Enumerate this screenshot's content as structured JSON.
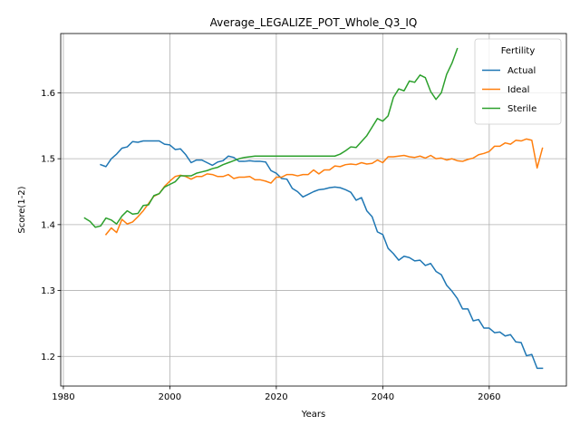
{
  "chart_data": {
    "type": "line",
    "title": "Average_LEGALIZE_POT_Whole_Q3_IQ",
    "xlabel": "Years",
    "ylabel": "Score(1-2)",
    "xlim": [
      1979.5,
      2074.5
    ],
    "ylim": [
      1.155,
      1.69
    ],
    "xticks": [
      1980,
      2000,
      2020,
      2040,
      2060
    ],
    "yticks": [
      1.2,
      1.3,
      1.4,
      1.5,
      1.6
    ],
    "grid": true,
    "legend": {
      "title": "Fertility",
      "placement": "top-right"
    },
    "series": [
      {
        "name": "Actual",
        "color": "#1f77b4",
        "x": [
          1987,
          1988,
          1989,
          1990,
          1991,
          1992,
          1993,
          1994,
          1995,
          1996,
          1997,
          1998,
          1999,
          2000,
          2001,
          2002,
          2003,
          2004,
          2005,
          2006,
          2007,
          2008,
          2009,
          2010,
          2011,
          2012,
          2013,
          2014,
          2015,
          2016,
          2017,
          2018,
          2019,
          2020,
          2021,
          2022,
          2023,
          2024,
          2025,
          2026,
          2027,
          2028,
          2029,
          2030,
          2031,
          2032,
          2033,
          2034,
          2035,
          2036,
          2037,
          2038,
          2039,
          2040,
          2041,
          2042,
          2043,
          2044,
          2045,
          2046,
          2047,
          2048,
          2049,
          2050,
          2051,
          2052,
          2053,
          2054,
          2055,
          2056,
          2057,
          2058,
          2059,
          2060,
          2061,
          2062,
          2063,
          2064,
          2065,
          2066,
          2067,
          2068,
          2069,
          2070
        ],
        "values": [
          1.491,
          1.488,
          1.5,
          1.507,
          1.516,
          1.518,
          1.526,
          1.525,
          1.527,
          1.527,
          1.527,
          1.527,
          1.522,
          1.521,
          1.514,
          1.515,
          1.506,
          1.494,
          1.498,
          1.498,
          1.494,
          1.49,
          1.495,
          1.497,
          1.504,
          1.502,
          1.496,
          1.496,
          1.497,
          1.496,
          1.496,
          1.495,
          1.482,
          1.478,
          1.47,
          1.469,
          1.455,
          1.45,
          1.442,
          1.446,
          1.45,
          1.453,
          1.454,
          1.456,
          1.457,
          1.456,
          1.453,
          1.449,
          1.437,
          1.441,
          1.421,
          1.412,
          1.389,
          1.385,
          1.364,
          1.356,
          1.346,
          1.352,
          1.35,
          1.345,
          1.346,
          1.338,
          1.341,
          1.329,
          1.324,
          1.308,
          1.299,
          1.288,
          1.272,
          1.272,
          1.254,
          1.256,
          1.243,
          1.243,
          1.236,
          1.237,
          1.231,
          1.233,
          1.222,
          1.221,
          1.201,
          1.203,
          1.182,
          1.182
        ]
      },
      {
        "name": "Ideal",
        "color": "#ff7f0e",
        "x": [
          1988,
          1989,
          1990,
          1991,
          1992,
          1993,
          1994,
          1995,
          1996,
          1997,
          1998,
          1999,
          2000,
          2001,
          2002,
          2003,
          2004,
          2005,
          2006,
          2007,
          2008,
          2009,
          2010,
          2011,
          2012,
          2013,
          2014,
          2015,
          2016,
          2017,
          2018,
          2019,
          2020,
          2021,
          2022,
          2023,
          2024,
          2025,
          2026,
          2027,
          2028,
          2029,
          2030,
          2031,
          2032,
          2033,
          2034,
          2035,
          2036,
          2037,
          2038,
          2039,
          2040,
          2041,
          2042,
          2043,
          2044,
          2045,
          2046,
          2047,
          2048,
          2049,
          2050,
          2051,
          2052,
          2053,
          2054,
          2055,
          2056,
          2057,
          2058,
          2059,
          2060,
          2061,
          2062,
          2063,
          2064,
          2065,
          2066,
          2067,
          2068,
          2069,
          2070
        ],
        "values": [
          1.385,
          1.395,
          1.388,
          1.408,
          1.401,
          1.404,
          1.412,
          1.421,
          1.432,
          1.443,
          1.447,
          1.458,
          1.466,
          1.473,
          1.475,
          1.473,
          1.469,
          1.473,
          1.473,
          1.477,
          1.476,
          1.473,
          1.473,
          1.476,
          1.47,
          1.472,
          1.472,
          1.473,
          1.468,
          1.468,
          1.466,
          1.463,
          1.472,
          1.472,
          1.476,
          1.476,
          1.474,
          1.476,
          1.476,
          1.483,
          1.477,
          1.483,
          1.483,
          1.489,
          1.488,
          1.491,
          1.492,
          1.491,
          1.494,
          1.492,
          1.493,
          1.498,
          1.494,
          1.503,
          1.503,
          1.504,
          1.505,
          1.503,
          1.502,
          1.504,
          1.501,
          1.505,
          1.5,
          1.501,
          1.498,
          1.5,
          1.497,
          1.496,
          1.499,
          1.501,
          1.506,
          1.508,
          1.511,
          1.519,
          1.519,
          1.524,
          1.522,
          1.528,
          1.527,
          1.53,
          1.528,
          1.486,
          1.516
        ]
      },
      {
        "name": "Sterile",
        "color": "#2ca02c",
        "x": [
          1984,
          1985,
          1986,
          1987,
          1988,
          1989,
          1990,
          1991,
          1992,
          1993,
          1994,
          1995,
          1996,
          1997,
          1998,
          1999,
          2000,
          2001,
          2002,
          2003,
          2004,
          2005,
          2006,
          2007,
          2008,
          2009,
          2010,
          2011,
          2012,
          2013,
          2014,
          2015,
          2016,
          2017,
          2018,
          2019,
          2020,
          2021,
          2022,
          2023,
          2024,
          2025,
          2026,
          2027,
          2028,
          2029,
          2030,
          2031,
          2032,
          2033,
          2034,
          2035,
          2036,
          2037,
          2038,
          2039,
          2040,
          2041,
          2042,
          2043,
          2044,
          2045,
          2046,
          2047,
          2048,
          2049,
          2050,
          2051,
          2052,
          2053,
          2054
        ],
        "values": [
          1.41,
          1.405,
          1.396,
          1.398,
          1.41,
          1.407,
          1.401,
          1.413,
          1.421,
          1.416,
          1.417,
          1.429,
          1.43,
          1.444,
          1.447,
          1.457,
          1.461,
          1.465,
          1.474,
          1.474,
          1.474,
          1.478,
          1.48,
          1.482,
          1.485,
          1.487,
          1.491,
          1.494,
          1.497,
          1.5,
          1.502,
          1.503,
          1.504,
          1.504,
          1.504,
          1.504,
          1.504,
          1.504,
          1.504,
          1.504,
          1.504,
          1.504,
          1.504,
          1.504,
          1.504,
          1.504,
          1.504,
          1.504,
          1.507,
          1.512,
          1.518,
          1.517,
          1.526,
          1.535,
          1.548,
          1.561,
          1.557,
          1.565,
          1.593,
          1.606,
          1.603,
          1.618,
          1.616,
          1.627,
          1.623,
          1.602,
          1.59,
          1.6,
          1.628,
          1.645,
          1.667
        ]
      }
    ]
  }
}
